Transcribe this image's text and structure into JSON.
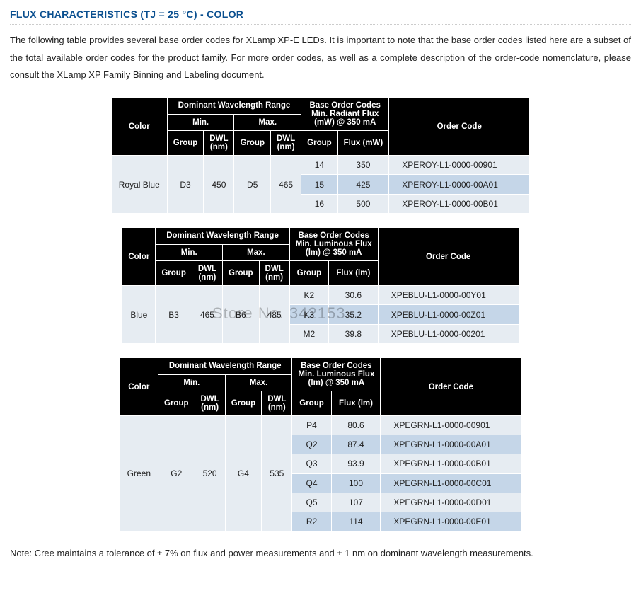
{
  "title": "FLUX CHARACTERISTICS (TJ = 25 °C) - COLOR",
  "intro": "The following table provides several base order codes for XLamp XP-E LEDs. It is important to note that the base order codes listed here are a subset of the total available order codes for the product family. For more order codes, as well as a complete description of the order-code nomenclature, please consult the XLamp XP Family Binning and Labeling document.",
  "footnote": "Note: Cree maintains a tolerance of ± 7% on flux and power measurements and ± 1 nm on dominant wavelength measurements.",
  "watermark": "Store No. 342153",
  "colors": {
    "heading": "#0a4f8f",
    "th_bg": "#000000",
    "th_fg": "#ffffff",
    "row_bg": "#e6ecf2",
    "row_alt_bg": "#c5d6e8",
    "border": "#ffffff"
  },
  "tables": [
    {
      "flux_label_line1": "Base Order Codes",
      "flux_label_line2": "Min. Radiant Flux",
      "flux_label_line3": "(mW) @ 350 mA",
      "flux_col": "Flux (mW)",
      "color_name": "Royal Blue",
      "min_group": "D3",
      "min_dwl": "450",
      "max_group": "D5",
      "max_dwl": "465",
      "rows": [
        {
          "group": "14",
          "flux": "350",
          "code": "XPEROY-L1-0000-00901"
        },
        {
          "group": "15",
          "flux": "425",
          "code": "XPEROY-L1-0000-00A01"
        },
        {
          "group": "16",
          "flux": "500",
          "code": "XPEROY-L1-0000-00B01"
        }
      ]
    },
    {
      "flux_label_line1": "Base Order Codes",
      "flux_label_line2": "Min. Luminous Flux",
      "flux_label_line3": "(lm) @ 350 mA",
      "flux_col": "Flux (lm)",
      "color_name": "Blue",
      "min_group": "B3",
      "min_dwl": "465",
      "max_group": "B6",
      "max_dwl": "485",
      "rows": [
        {
          "group": "K2",
          "flux": "30.6",
          "code": "XPEBLU-L1-0000-00Y01"
        },
        {
          "group": "K3",
          "flux": "35.2",
          "code": "XPEBLU-L1-0000-00Z01"
        },
        {
          "group": "M2",
          "flux": "39.8",
          "code": "XPEBLU-L1-0000-00201"
        }
      ]
    },
    {
      "flux_label_line1": "Base Order Codes",
      "flux_label_line2": "Min. Luminous Flux",
      "flux_label_line3": "(lm) @ 350 mA",
      "flux_col": "Flux (lm)",
      "color_name": "Green",
      "min_group": "G2",
      "min_dwl": "520",
      "max_group": "G4",
      "max_dwl": "535",
      "rows": [
        {
          "group": "P4",
          "flux": "80.6",
          "code": "XPEGRN-L1-0000-00901"
        },
        {
          "group": "Q2",
          "flux": "87.4",
          "code": "XPEGRN-L1-0000-00A01"
        },
        {
          "group": "Q3",
          "flux": "93.9",
          "code": "XPEGRN-L1-0000-00B01"
        },
        {
          "group": "Q4",
          "flux": "100",
          "code": "XPEGRN-L1-0000-00C01"
        },
        {
          "group": "Q5",
          "flux": "107",
          "code": "XPEGRN-L1-0000-00D01"
        },
        {
          "group": "R2",
          "flux": "114",
          "code": "XPEGRN-L1-0000-00E01"
        }
      ]
    }
  ],
  "headers": {
    "color": "Color",
    "dwr": "Dominant Wavelength Range",
    "min": "Min.",
    "max": "Max.",
    "group": "Group",
    "dwl": "DWL (nm)",
    "order_code": "Order Code"
  }
}
